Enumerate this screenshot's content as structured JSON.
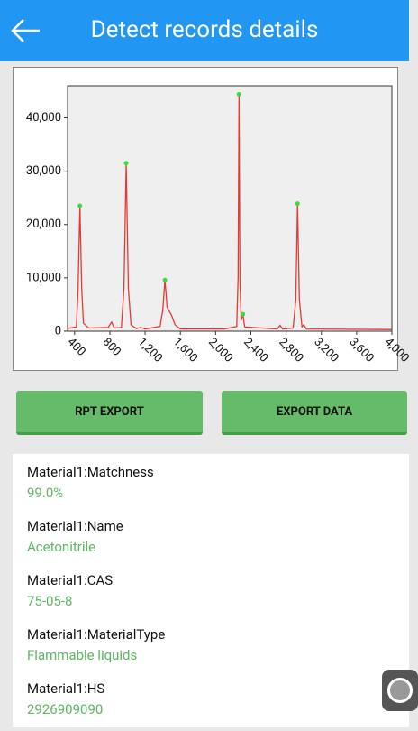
{
  "header": {
    "title": "Detect records details"
  },
  "chart_data": {
    "type": "line",
    "series": [
      {
        "color": "#e53935",
        "x": [
          320,
          420,
          440,
          460,
          480,
          500,
          560,
          780,
          820,
          850,
          930,
          960,
          985,
          1010,
          1040,
          1100,
          1150,
          1200,
          1370,
          1400,
          1425,
          1450,
          1500,
          1540,
          1600,
          2100,
          2240,
          2255,
          2265,
          2275,
          2290,
          2310,
          2330,
          2700,
          2730,
          2760,
          2880,
          2910,
          2930,
          2950,
          2980,
          3000,
          3030,
          4000
        ],
        "values": [
          500,
          800,
          8000,
          23500,
          8000,
          1500,
          600,
          700,
          1700,
          600,
          700,
          8000,
          31500,
          8000,
          1200,
          500,
          700,
          400,
          900,
          4000,
          9600,
          4500,
          3000,
          1200,
          400,
          400,
          900,
          10000,
          44400,
          10000,
          2000,
          3200,
          800,
          400,
          1100,
          400,
          600,
          6000,
          23900,
          6000,
          800,
          1200,
          400,
          300
        ]
      }
    ],
    "peaks": {
      "color": "#3ddc3d",
      "x": [
        460,
        985,
        1425,
        2265,
        2310,
        2930
      ],
      "values": [
        23500,
        31500,
        9600,
        44400,
        3200,
        23900
      ]
    },
    "xlim": [
      320,
      4000
    ],
    "ylim": [
      0,
      46000
    ],
    "xticks": [
      400,
      800,
      {
        "value": 1200,
        "label": "1,200"
      },
      {
        "value": 1600,
        "label": "1,600"
      },
      {
        "value": 2000,
        "label": "2,000"
      },
      {
        "value": 2400,
        "label": "2,400"
      },
      {
        "value": 2800,
        "label": "2,800"
      },
      {
        "value": 3200,
        "label": "3,200"
      },
      {
        "value": 3600,
        "label": "3,600"
      },
      {
        "value": 4000,
        "label": "4,000"
      }
    ],
    "yticks": [
      0,
      {
        "value": 10000,
        "label": "10,000"
      },
      {
        "value": 20000,
        "label": "20,000"
      },
      {
        "value": 30000,
        "label": "30,000"
      },
      {
        "value": 40000,
        "label": "40,000"
      }
    ]
  },
  "buttons": [
    "RPT EXPORT",
    "EXPORT DATA"
  ],
  "fields": [
    {
      "label": "Material1:Matchness",
      "value": "99.0%"
    },
    {
      "label": "Material1:Name",
      "value": "Acetonitrile"
    },
    {
      "label": "Material1:CAS",
      "value": "75-05-8"
    },
    {
      "label": "Material1:MaterialType",
      "value": "Flammable liquids"
    },
    {
      "label": "Material1:HS",
      "value": "2926909090"
    }
  ]
}
